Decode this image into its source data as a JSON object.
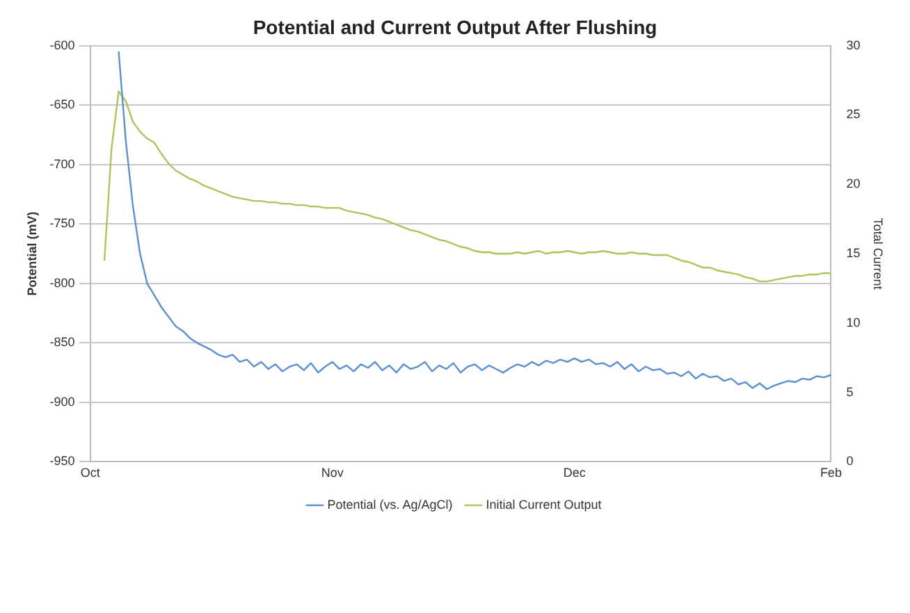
{
  "chart_data": {
    "type": "line",
    "title": "Potential and Current Output After Flushing",
    "ylabel": "Potential (mV)",
    "y2label": "Total Current",
    "categories": [
      "Oct",
      null,
      null,
      null,
      null,
      null,
      null,
      null,
      null,
      null,
      null,
      null,
      null,
      null,
      null,
      null,
      null,
      null,
      null,
      null,
      null,
      null,
      null,
      null,
      null,
      null,
      null,
      null,
      null,
      null,
      null,
      null,
      null,
      null,
      "Nov",
      null,
      null,
      null,
      null,
      null,
      null,
      null,
      null,
      null,
      null,
      null,
      null,
      null,
      null,
      null,
      null,
      null,
      null,
      null,
      null,
      null,
      null,
      null,
      null,
      null,
      null,
      null,
      null,
      null,
      null,
      null,
      null,
      null,
      "Dec",
      null,
      null,
      null,
      null,
      null,
      null,
      null,
      null,
      null,
      null,
      null,
      null,
      null,
      null,
      null,
      null,
      null,
      null,
      null,
      null,
      null,
      null,
      null,
      null,
      null,
      null,
      null,
      null,
      null,
      null,
      null,
      null,
      null,
      null,
      null,
      "Feb"
    ],
    "series": [
      {
        "name": "Potential (vs. Ag/AgCl)",
        "color": "#5b8fd4",
        "values": [
          null,
          null,
          null,
          null,
          -605,
          -680,
          -735,
          -775,
          -800,
          -810,
          -820,
          -828,
          -836,
          -840,
          -846,
          -850,
          -853,
          -856,
          -860,
          -862,
          -860,
          -866,
          -864,
          -870,
          -866,
          -872,
          -868,
          -874,
          -870,
          -868,
          -873,
          -867,
          -875,
          -870,
          -866,
          -872,
          -869,
          -874,
          -868,
          -871,
          -866,
          -873,
          -869,
          -875,
          -868,
          -872,
          -870,
          -866,
          -874,
          -869,
          -872,
          -867,
          -875,
          -870,
          -868,
          -873,
          -869,
          -872,
          -875,
          -871,
          -868,
          -870,
          -866,
          -869,
          -865,
          -867,
          -864,
          -866,
          -863,
          -866,
          -864,
          -868,
          -867,
          -870,
          -866,
          -872,
          -868,
          -874,
          -870,
          -873,
          -872,
          -876,
          -875,
          -878,
          -874,
          -880,
          -876,
          -879,
          -878,
          -882,
          -880,
          -885,
          -883,
          -888,
          -884,
          -889,
          -886,
          -884,
          -882,
          -883,
          -880,
          -881,
          -878,
          -879,
          -877
        ]
      },
      {
        "name": "Initial Current Output",
        "color": "#a9c65a",
        "axis": "y2",
        "values": [
          null,
          null,
          14.5,
          22.6,
          26.7,
          26.0,
          24.5,
          23.8,
          23.3,
          23.0,
          22.2,
          21.5,
          21.0,
          20.7,
          20.4,
          20.2,
          19.9,
          19.7,
          19.5,
          19.3,
          19.1,
          19.0,
          18.9,
          18.8,
          18.8,
          18.7,
          18.7,
          18.6,
          18.6,
          18.5,
          18.5,
          18.4,
          18.4,
          18.3,
          18.3,
          18.3,
          18.1,
          18.0,
          17.9,
          17.8,
          17.6,
          17.5,
          17.3,
          17.1,
          16.9,
          16.7,
          16.6,
          16.4,
          16.2,
          16.0,
          15.9,
          15.7,
          15.5,
          15.4,
          15.2,
          15.1,
          15.1,
          15.0,
          15.0,
          15.0,
          15.1,
          15.0,
          15.1,
          15.2,
          15.0,
          15.1,
          15.1,
          15.2,
          15.1,
          15.0,
          15.1,
          15.1,
          15.2,
          15.1,
          15.0,
          15.0,
          15.1,
          15.0,
          15.0,
          14.9,
          14.9,
          14.9,
          14.7,
          14.5,
          14.4,
          14.2,
          14.0,
          14.0,
          13.8,
          13.7,
          13.6,
          13.5,
          13.3,
          13.2,
          13.0,
          13.0,
          13.1,
          13.2,
          13.3,
          13.4,
          13.4,
          13.5,
          13.5,
          13.6,
          13.6
        ]
      }
    ],
    "ylim": [
      -950,
      -600
    ],
    "yticks": [
      -600,
      -650,
      -700,
      -750,
      -800,
      -850,
      -900,
      -950
    ],
    "y2lim": [
      0,
      30
    ],
    "y2ticks": [
      0,
      5,
      10,
      15,
      20,
      25,
      30
    ],
    "grid": "y",
    "legend": "bottom",
    "marker": "none",
    "line_style": "solid"
  }
}
